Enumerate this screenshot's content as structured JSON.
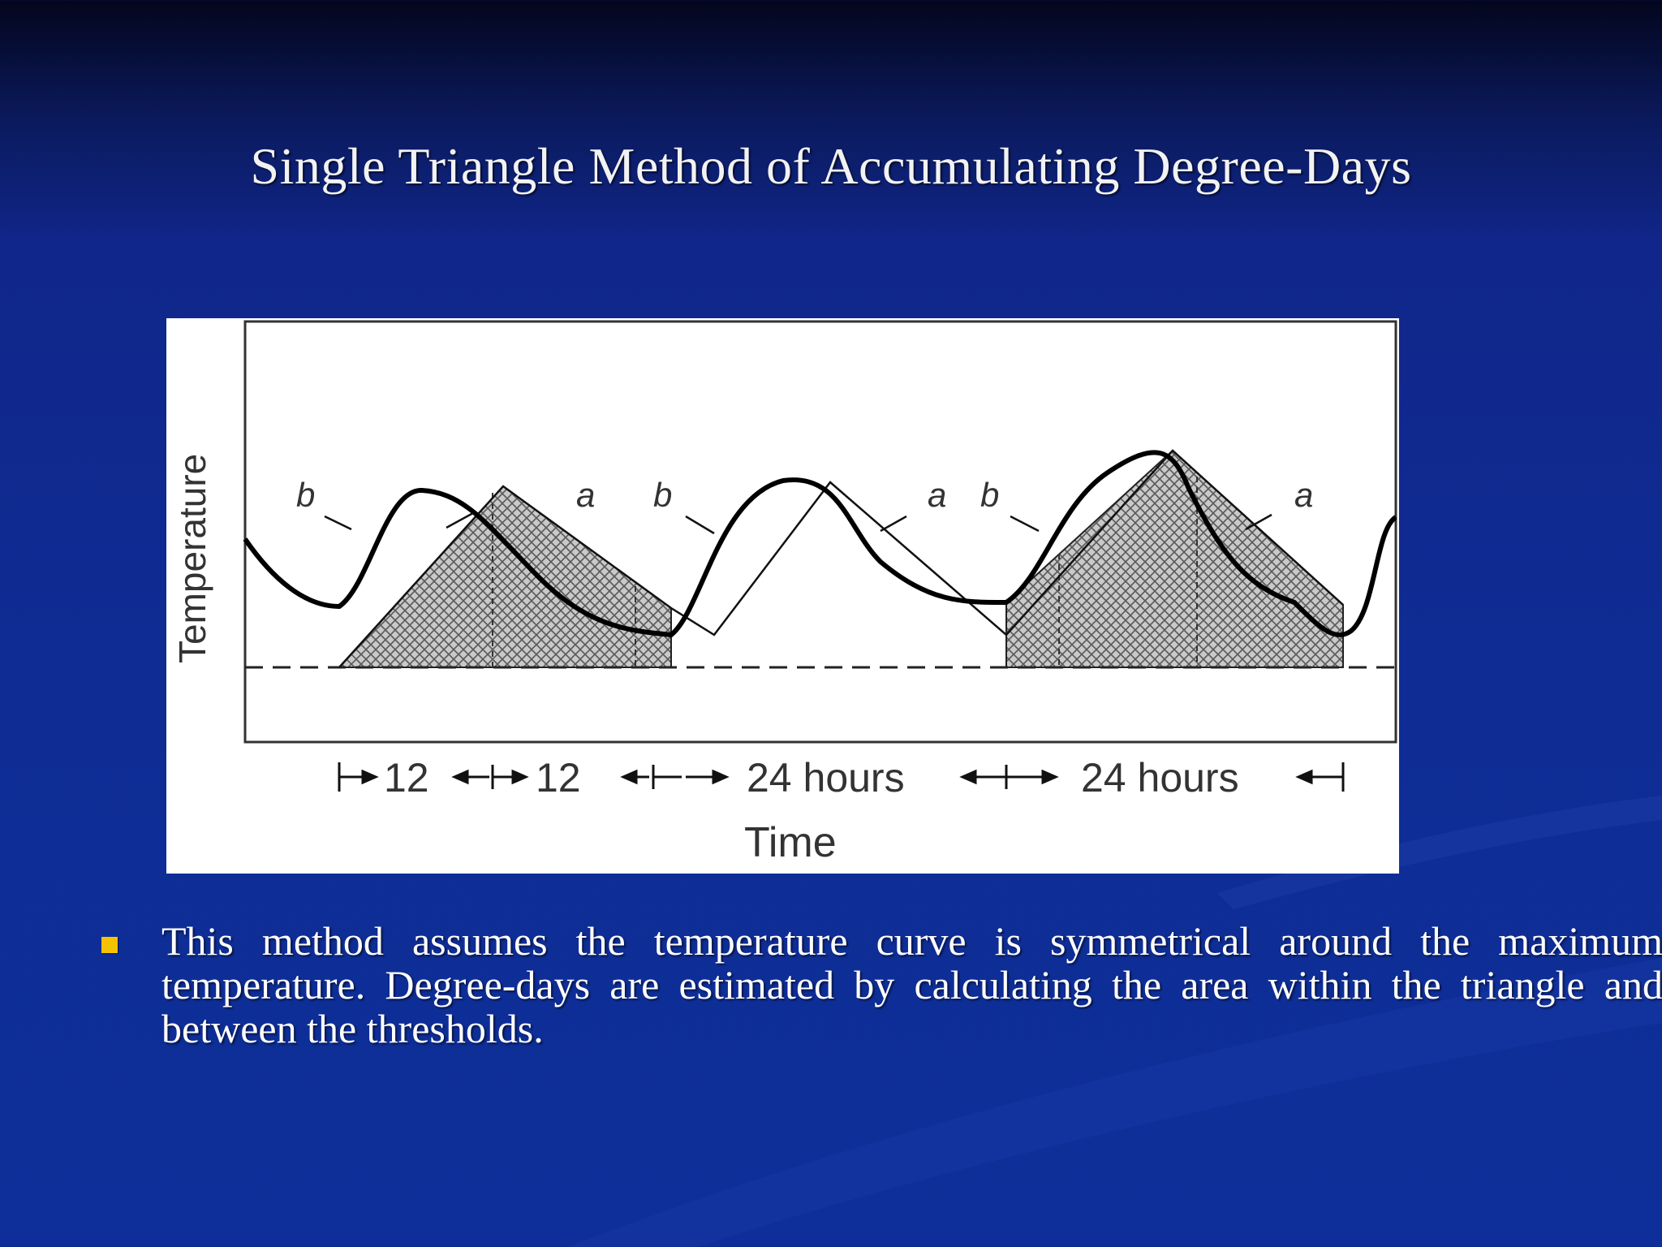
{
  "slide": {
    "title": "Single Triangle Method of Accumulating Degree-Days"
  },
  "figure": {
    "y_axis_label": "Temperature",
    "x_axis_label": "Time",
    "curve_labels": [
      "b",
      "a",
      "b",
      "a",
      "b",
      "a"
    ],
    "interval_labels": [
      "12",
      "12",
      "24 hours",
      "24 hours"
    ]
  },
  "bullets": [
    {
      "text": "This method assumes the temperature curve is symmetrical around the maximum temperature. Degree-days are estimated by calculating the area within the triangle and between the thresholds."
    }
  ],
  "colors": {
    "background": "#0f2c94",
    "title": "#f2f2f2",
    "bullet_marker": "#f5c200",
    "body_text": "#ffffff"
  }
}
